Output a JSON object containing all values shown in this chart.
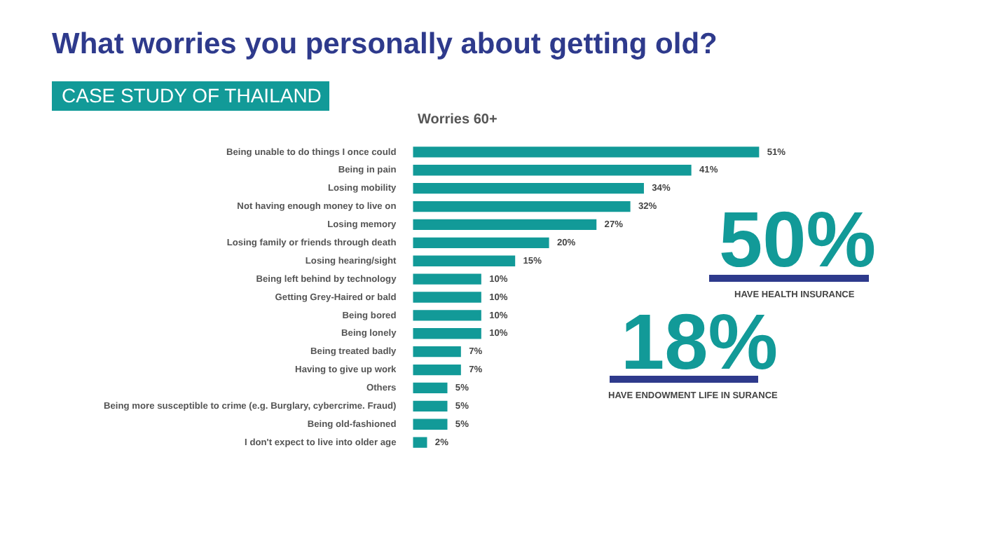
{
  "chart_data": {
    "type": "bar",
    "orientation": "horizontal",
    "title": "What worries you personally about getting old?",
    "subtitle": "CASE STUDY OF THAILAND",
    "annotations": [
      "Worries 60+",
      "50%",
      "HAVE HEALTH INSURANCE",
      "18%",
      "HAVE ENDOWMENT LIFE IN SURANCE"
    ],
    "categories": [
      "Being unable to do things I once could",
      "Being in pain",
      "Losing mobility",
      "Not having enough money to live on",
      "Losing memory",
      "Losing family or friends through death",
      "Losing hearing/sight",
      "Being left behind by technology",
      "Getting Grey-Haired or bald",
      "Being bored",
      "Being lonely",
      "Being treated badly",
      "Having to give up work",
      "Others",
      "Being more susceptible to crime (e.g. Burglary, cybercrime. Fraud)",
      "Being old-fashioned",
      "I don't expect to live into older age"
    ],
    "values": [
      51,
      41,
      34,
      32,
      27,
      20,
      15,
      10,
      10,
      10,
      10,
      7,
      7,
      5,
      5,
      5,
      2
    ],
    "value_labels": [
      "51%",
      "41%",
      "34%",
      "32%",
      "27%",
      "20%",
      "15%",
      "10%",
      "10%",
      "10%",
      "10%",
      "7%",
      "7%",
      "5%",
      "5%",
      "5%",
      "2%"
    ],
    "color": "#129a98",
    "tick_labels": "y",
    "legend": false
  }
}
